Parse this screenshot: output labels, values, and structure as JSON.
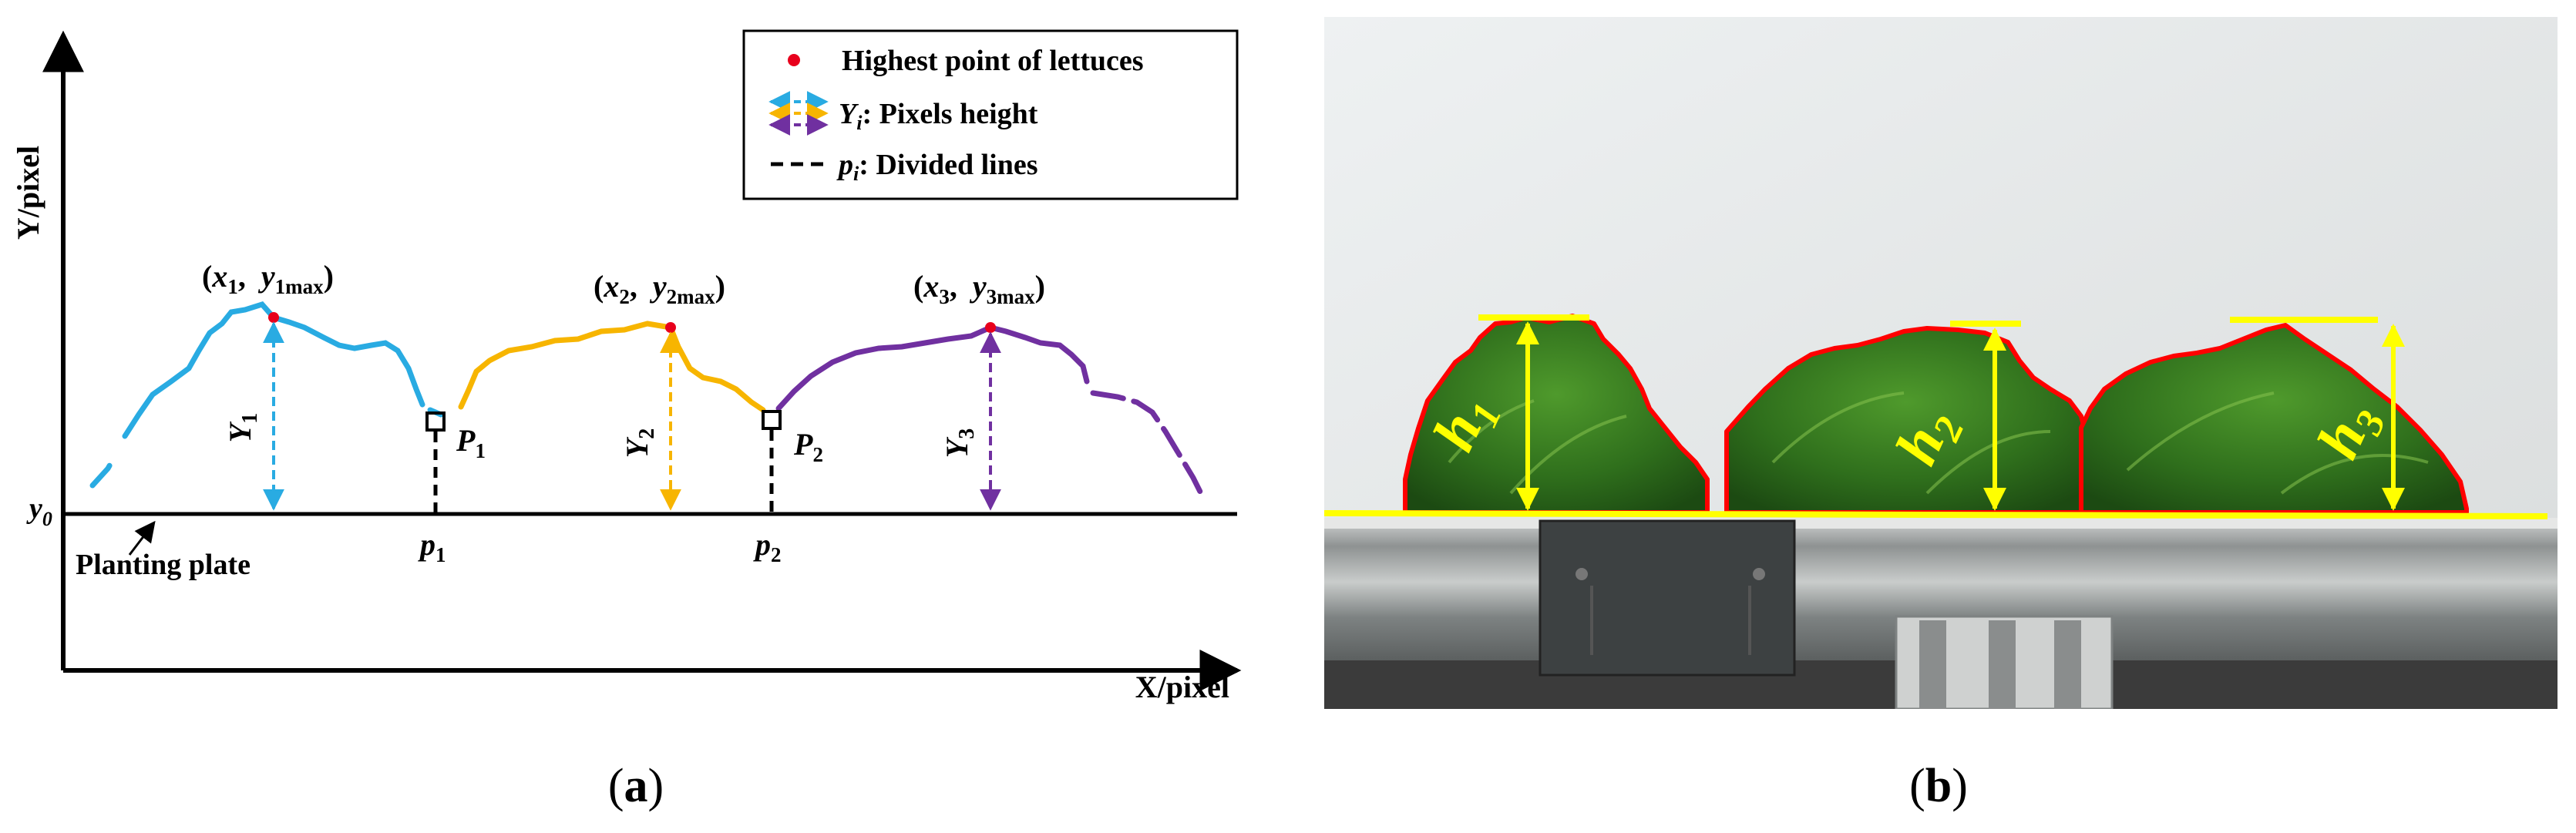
{
  "panel_a": {
    "y_axis_label": "Y/pixel",
    "x_axis_label": "X/pixel",
    "baseline_label": "y",
    "baseline_sub": "0",
    "plate_label": "Planting plate",
    "legend": {
      "highest": "Highest point of lettuces",
      "height_var": "Y",
      "height_sub": "i",
      "height_text": ": Pixels height",
      "divided_var": "p",
      "divided_sub": "i",
      "divided_text": ": Divided lines"
    },
    "lettuces": [
      {
        "open": "(",
        "x": "x",
        "x_sub": "1",
        "sep": ",  ",
        "y": "y",
        "y_sub": "1max",
        "close": ")",
        "height_var": "Y",
        "height_sub": "1",
        "color": "#29abe2"
      },
      {
        "open": "(",
        "x": "x",
        "x_sub": "2",
        "sep": ",  ",
        "y": "y",
        "y_sub": "2max",
        "close": ")",
        "height_var": "Y",
        "height_sub": "2",
        "color": "#f7b500"
      },
      {
        "open": "(",
        "x": "x",
        "x_sub": "3",
        "sep": ",  ",
        "y": "y",
        "y_sub": "3max",
        "close": ")",
        "height_var": "Y",
        "height_sub": "3",
        "color": "#7030a0"
      }
    ],
    "dividers": [
      {
        "point_var": "P",
        "point_sub": "1",
        "line_var": "p",
        "line_sub": "1"
      },
      {
        "point_var": "P",
        "point_sub": "2",
        "line_var": "p",
        "line_sub": "2"
      }
    ],
    "highest_color": "#e8001c"
  },
  "panel_b": {
    "heights": [
      {
        "var": "h",
        "sub": "1"
      },
      {
        "var": "h",
        "sub": "2"
      },
      {
        "var": "h",
        "sub": "3"
      }
    ],
    "marker_color": "#ffff00",
    "contour_color": "#ff0000"
  },
  "captions": {
    "a_open": "(",
    "a": "a",
    "a_close": ")",
    "b_open": "(",
    "b": "b",
    "b_close": ")"
  }
}
